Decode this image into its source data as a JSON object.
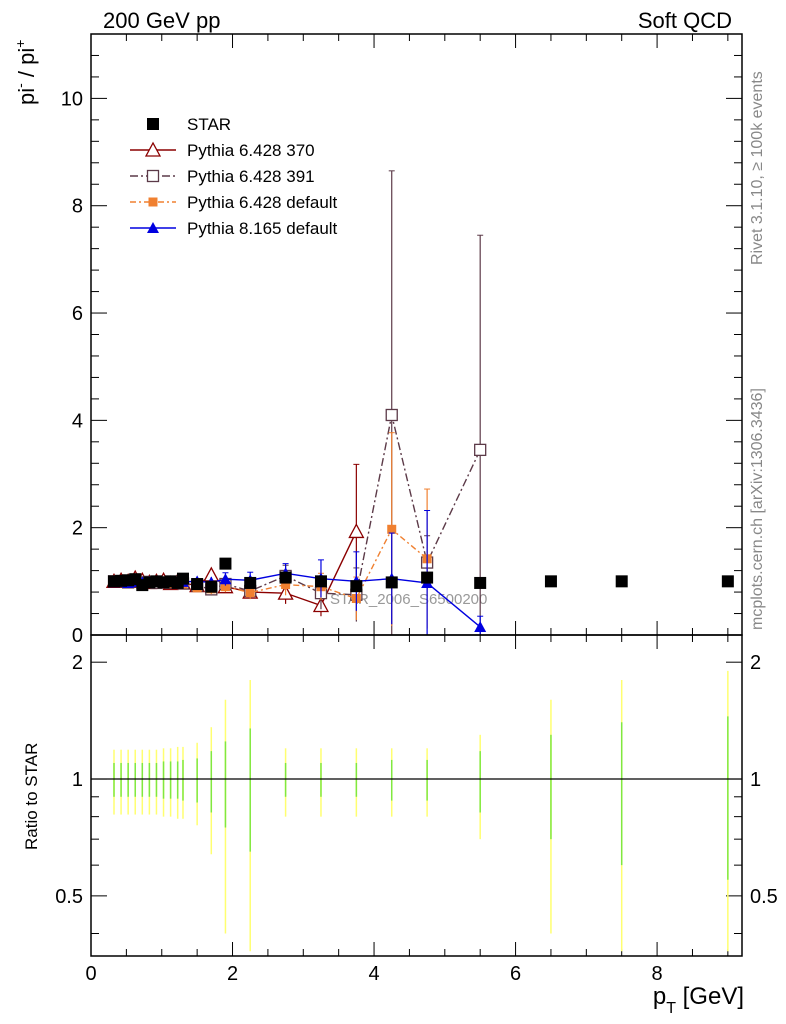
{
  "header": {
    "left_label": "200 GeV pp",
    "right_label": "Soft QCD"
  },
  "side_labels": {
    "rivet": "Rivet 3.1.10, ≥ 100k events",
    "source": "mcplots.cern.ch [arXiv:1306.3436]"
  },
  "watermark": "STAR_2006_S6500200",
  "chart_data": {
    "type": "line",
    "title": "",
    "ylabel_main": {
      "base": "pi",
      "sup1": "-",
      "sep": " / pi",
      "sup2": "+"
    },
    "ylabel_ratio": "Ratio to STAR",
    "xlabel": {
      "base": "p",
      "sub": "T",
      "unit": " [GeV]"
    },
    "xlim": [
      0,
      9.2
    ],
    "ylim_main": [
      0,
      11.2
    ],
    "ylim_ratio": [
      0.35,
      2.35
    ],
    "ratio_scale": "log",
    "x_ticks": [
      0,
      2,
      4,
      6,
      8
    ],
    "y_ticks_main": [
      0,
      2,
      4,
      6,
      8,
      10
    ],
    "y_ticks_ratio": [
      0.5,
      1,
      2
    ],
    "legend_position": "top-left",
    "series": [
      {
        "name": "STAR",
        "color": "#000000",
        "marker": "square-filled",
        "dash": "none",
        "x": [
          0.325,
          0.425,
          0.525,
          0.625,
          0.725,
          0.825,
          0.925,
          1.025,
          1.125,
          1.225,
          1.3,
          1.5,
          1.7,
          1.9,
          2.25,
          2.75,
          3.25,
          3.75,
          4.25,
          4.75,
          5.5,
          6.5,
          7.5,
          9.0
        ],
        "y": [
          1.0,
          1.01,
          1.02,
          1.04,
          0.93,
          0.98,
          1.0,
          0.98,
          1.0,
          0.97,
          1.05,
          0.95,
          0.9,
          1.33,
          0.97,
          1.07,
          1.0,
          0.91,
          0.98,
          1.07,
          0.97,
          1.0,
          1.0,
          1.0
        ],
        "err": [
          0.05,
          0.05,
          0.05,
          0.05,
          0.05,
          0.05,
          0.05,
          0.05,
          0.05,
          0.05,
          0.05,
          0.05,
          0.05,
          0.05,
          0.05,
          0.05,
          0.05,
          0.05,
          0.05,
          0.05,
          0.05,
          0.05,
          0.05,
          0.05
        ]
      },
      {
        "name": "Pythia 6.428 370",
        "color": "#8b0000",
        "marker": "triangle-open",
        "dash": "none",
        "x": [
          0.325,
          0.425,
          0.525,
          0.625,
          0.725,
          0.825,
          0.925,
          1.025,
          1.125,
          1.225,
          1.3,
          1.5,
          1.7,
          1.9,
          2.25,
          2.75,
          3.25,
          3.75
        ],
        "y": [
          1.0,
          1.02,
          1.0,
          1.06,
          1.02,
          0.98,
          1.0,
          1.02,
          0.96,
          1.0,
          0.97,
          0.92,
          1.12,
          0.9,
          0.8,
          0.78,
          0.55,
          1.93
        ],
        "err": [
          0.05,
          0.05,
          0.05,
          0.05,
          0.05,
          0.05,
          0.05,
          0.05,
          0.05,
          0.05,
          0.06,
          0.08,
          0.1,
          0.1,
          0.12,
          0.2,
          0.2,
          1.25
        ]
      },
      {
        "name": "Pythia 6.428 391",
        "color": "#5c3a48",
        "marker": "square-open",
        "dash": "8,3,2,3",
        "x": [
          0.325,
          0.425,
          0.525,
          0.625,
          0.725,
          0.825,
          0.925,
          1.025,
          1.125,
          1.225,
          1.3,
          1.5,
          1.7,
          1.9,
          2.25,
          2.75,
          3.25,
          3.75,
          4.25,
          4.75,
          5.5
        ],
        "y": [
          1.0,
          1.0,
          0.98,
          1.0,
          0.98,
          0.99,
          0.97,
          0.98,
          0.97,
          0.99,
          0.96,
          0.92,
          0.85,
          0.95,
          0.82,
          1.1,
          0.78,
          0.75,
          4.1,
          1.35,
          3.45
        ],
        "err": [
          0.05,
          0.05,
          0.05,
          0.05,
          0.05,
          0.05,
          0.05,
          0.05,
          0.05,
          0.05,
          0.06,
          0.08,
          0.1,
          0.1,
          0.15,
          0.2,
          0.3,
          0.5,
          4.55,
          0.5,
          4.0
        ]
      },
      {
        "name": "Pythia 6.428 default",
        "color": "#f08030",
        "marker": "square-filled-small",
        "dash": "6,3,2,3",
        "x": [
          0.325,
          0.425,
          0.525,
          0.625,
          0.725,
          0.825,
          0.925,
          1.025,
          1.125,
          1.225,
          1.3,
          1.5,
          1.7,
          1.9,
          2.25,
          2.75,
          3.25,
          3.75,
          4.25,
          4.75
        ],
        "y": [
          1.0,
          0.99,
          0.98,
          0.99,
          0.97,
          0.98,
          0.99,
          0.97,
          0.96,
          0.97,
          0.95,
          0.88,
          0.86,
          0.9,
          0.79,
          0.94,
          0.9,
          0.68,
          1.97,
          1.42
        ],
        "err": [
          0.05,
          0.05,
          0.05,
          0.05,
          0.05,
          0.05,
          0.05,
          0.05,
          0.05,
          0.05,
          0.06,
          0.08,
          0.1,
          0.1,
          0.12,
          0.2,
          0.25,
          0.4,
          1.8,
          1.3
        ]
      },
      {
        "name": "Pythia 8.165 default",
        "color": "#0000e0",
        "marker": "triangle-filled",
        "dash": "none",
        "x": [
          0.325,
          0.425,
          0.525,
          0.625,
          0.725,
          0.825,
          0.925,
          1.025,
          1.125,
          1.225,
          1.3,
          1.5,
          1.7,
          1.9,
          2.25,
          2.75,
          3.25,
          3.75,
          4.25,
          4.75,
          5.5
        ],
        "y": [
          0.98,
          0.99,
          0.97,
          0.99,
          0.98,
          0.99,
          1.0,
          0.98,
          0.99,
          0.97,
          0.99,
          1.0,
          0.98,
          1.04,
          1.02,
          1.15,
          1.05,
          1.0,
          1.05,
          0.97,
          0.15
        ],
        "err": [
          0.05,
          0.05,
          0.05,
          0.05,
          0.05,
          0.05,
          0.05,
          0.05,
          0.05,
          0.05,
          0.06,
          0.08,
          0.1,
          0.12,
          0.15,
          0.18,
          0.35,
          0.55,
          0.85,
          1.35,
          0.2
        ]
      }
    ],
    "ratio_band": {
      "color_outer": "#ffff70",
      "color_inner": "#80e840",
      "x": [
        0.325,
        0.425,
        0.525,
        0.625,
        0.725,
        0.825,
        0.925,
        1.025,
        1.125,
        1.225,
        1.3,
        1.5,
        1.7,
        1.9,
        2.25,
        2.75,
        3.25,
        3.75,
        4.25,
        4.75,
        5.5,
        6.5,
        7.5,
        9.0
      ],
      "outer": [
        0.19,
        0.19,
        0.19,
        0.19,
        0.19,
        0.19,
        0.19,
        0.2,
        0.2,
        0.21,
        0.21,
        0.24,
        0.36,
        0.6,
        0.8,
        0.2,
        0.2,
        0.2,
        0.2,
        0.2,
        0.3,
        0.6,
        0.8,
        0.9
      ],
      "inner": [
        0.1,
        0.1,
        0.1,
        0.1,
        0.1,
        0.1,
        0.1,
        0.11,
        0.11,
        0.11,
        0.12,
        0.13,
        0.18,
        0.25,
        0.35,
        0.1,
        0.1,
        0.1,
        0.12,
        0.12,
        0.18,
        0.3,
        0.4,
        0.45
      ]
    }
  }
}
